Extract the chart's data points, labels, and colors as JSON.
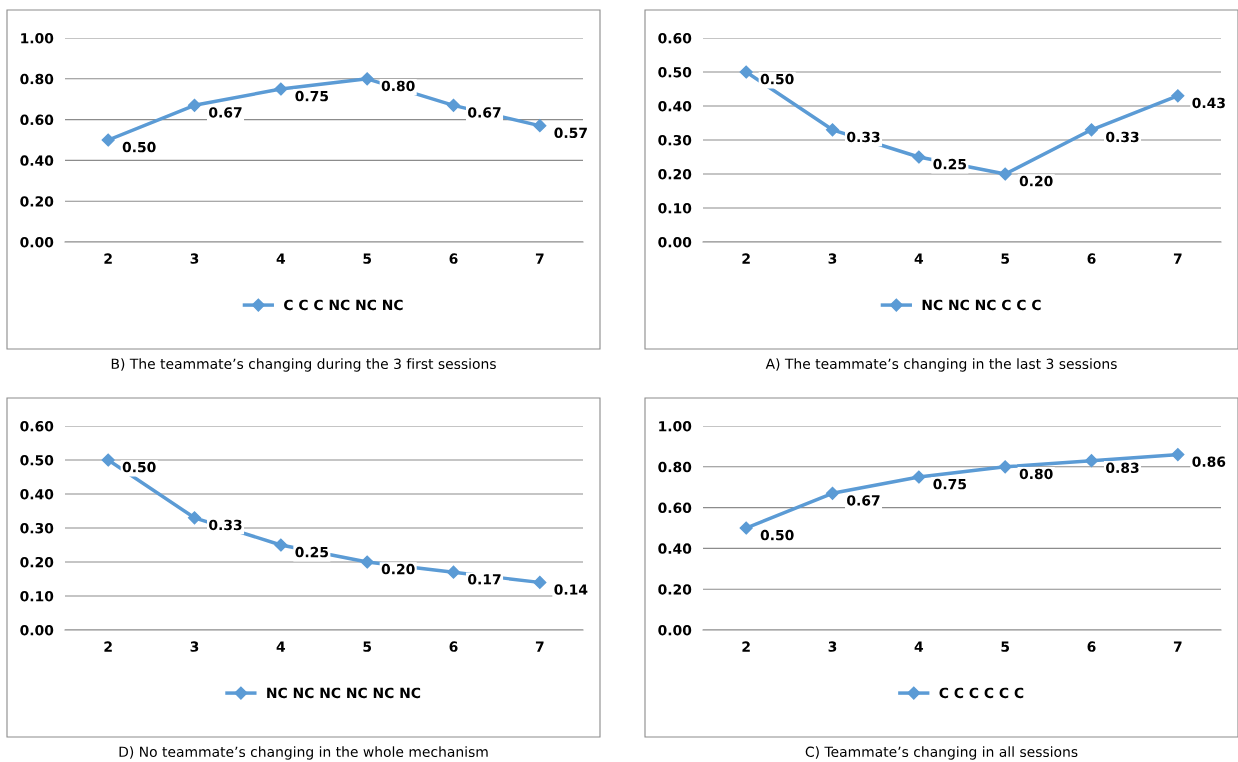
{
  "chart_data": [
    {
      "type": "line",
      "categories": [
        "2",
        "3",
        "4",
        "5",
        "6",
        "7"
      ],
      "series": [
        {
          "name": "C C C NC NC NC",
          "color": "#5b9bd5",
          "values": [
            0.5,
            0.67,
            0.75,
            0.8,
            0.67,
            0.57
          ],
          "value_labels": [
            "0.50",
            "0.67",
            "0.75",
            "0.80",
            "0.67",
            "0.57"
          ]
        }
      ],
      "ylim": [
        0,
        1
      ],
      "yticks": [
        {
          "value": 0,
          "label": "0.00"
        },
        {
          "value": 0.2,
          "label": "0.20"
        },
        {
          "value": 0.4,
          "label": "0.40"
        },
        {
          "value": 0.6,
          "label": "0.60"
        },
        {
          "value": 0.8,
          "label": "0.80"
        },
        {
          "value": 1.0,
          "label": "1.00"
        }
      ],
      "grid": "y",
      "legend": "bottom",
      "marker": "diamond",
      "line_style": "solid",
      "annotations": [
        "B) The teammate’s changing during the 3 first sessions"
      ]
    },
    {
      "type": "line",
      "categories": [
        "2",
        "3",
        "4",
        "5",
        "6",
        "7"
      ],
      "series": [
        {
          "name": "NC NC NC C C C",
          "color": "#5b9bd5",
          "values": [
            0.5,
            0.33,
            0.25,
            0.2,
            0.33,
            0.43
          ],
          "value_labels": [
            "0.50",
            "0.33",
            "0.25",
            "0.20",
            "0.33",
            "0.43"
          ]
        }
      ],
      "ylim": [
        0,
        0.6
      ],
      "yticks": [
        {
          "value": 0,
          "label": "0.00"
        },
        {
          "value": 0.1,
          "label": "0.10"
        },
        {
          "value": 0.2,
          "label": "0.20"
        },
        {
          "value": 0.3,
          "label": "0.30"
        },
        {
          "value": 0.4,
          "label": "0.40"
        },
        {
          "value": 0.5,
          "label": "0.50"
        },
        {
          "value": 0.6,
          "label": "0.60"
        }
      ],
      "grid": "y",
      "legend": "bottom",
      "marker": "diamond",
      "line_style": "solid",
      "annotations": [
        "A) The teammate’s changing in the last 3 sessions"
      ]
    },
    {
      "type": "line",
      "categories": [
        "2",
        "3",
        "4",
        "5",
        "6",
        "7"
      ],
      "series": [
        {
          "name": "NC NC NC NC NC NC",
          "color": "#5b9bd5",
          "values": [
            0.5,
            0.33,
            0.25,
            0.2,
            0.17,
            0.14
          ],
          "value_labels": [
            "0.50",
            "0.33",
            "0.25",
            "0.20",
            "0.17",
            "0.14"
          ]
        }
      ],
      "ylim": [
        0,
        0.6
      ],
      "yticks": [
        {
          "value": 0,
          "label": "0.00"
        },
        {
          "value": 0.1,
          "label": "0.10"
        },
        {
          "value": 0.2,
          "label": "0.20"
        },
        {
          "value": 0.3,
          "label": "0.30"
        },
        {
          "value": 0.4,
          "label": "0.40"
        },
        {
          "value": 0.5,
          "label": "0.50"
        },
        {
          "value": 0.6,
          "label": "0.60"
        }
      ],
      "grid": "y",
      "legend": "bottom",
      "marker": "diamond",
      "line_style": "solid",
      "annotations": [
        "D) No teammate’s changing in the whole mechanism"
      ]
    },
    {
      "type": "line",
      "categories": [
        "2",
        "3",
        "4",
        "5",
        "6",
        "7"
      ],
      "series": [
        {
          "name": "C C C C C C",
          "color": "#5b9bd5",
          "values": [
            0.5,
            0.67,
            0.75,
            0.8,
            0.83,
            0.86
          ],
          "value_labels": [
            "0.50",
            "0.67",
            "0.75",
            "0.80",
            "0.83",
            "0.86"
          ]
        }
      ],
      "ylim": [
        0,
        1
      ],
      "yticks": [
        {
          "value": 0,
          "label": "0.00"
        },
        {
          "value": 0.2,
          "label": "0.20"
        },
        {
          "value": 0.4,
          "label": "0.40"
        },
        {
          "value": 0.6,
          "label": "0.60"
        },
        {
          "value": 0.8,
          "label": "0.80"
        },
        {
          "value": 1.0,
          "label": "1.00"
        }
      ],
      "grid": "y",
      "legend": "bottom",
      "marker": "diamond",
      "line_style": "solid",
      "annotations": [
        "C) Teammate’s changing in all sessions"
      ]
    }
  ]
}
